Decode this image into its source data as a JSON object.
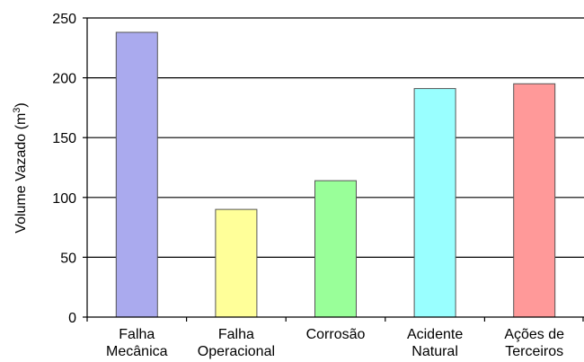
{
  "chart_data": {
    "type": "bar",
    "categories": [
      [
        "Falha",
        "Mecânica"
      ],
      [
        "Falha",
        "Operacional"
      ],
      [
        "Corrosão"
      ],
      [
        "Acidente",
        "Natural"
      ],
      [
        "Ações de",
        "Terceiros"
      ]
    ],
    "values": [
      238,
      90,
      114,
      191,
      195
    ],
    "colors": [
      "#aaaaee",
      "#ffff99",
      "#99ff99",
      "#99ffff",
      "#ff9999"
    ],
    "ylabel": "Volume Vazado (m³)",
    "ylabel_parts": {
      "text": "Volume Vazado (m",
      "superscript": "3",
      "close": ")"
    },
    "ylim": [
      0,
      250
    ],
    "yticks": [
      0,
      50,
      100,
      150,
      200,
      250
    ],
    "grid": true
  }
}
